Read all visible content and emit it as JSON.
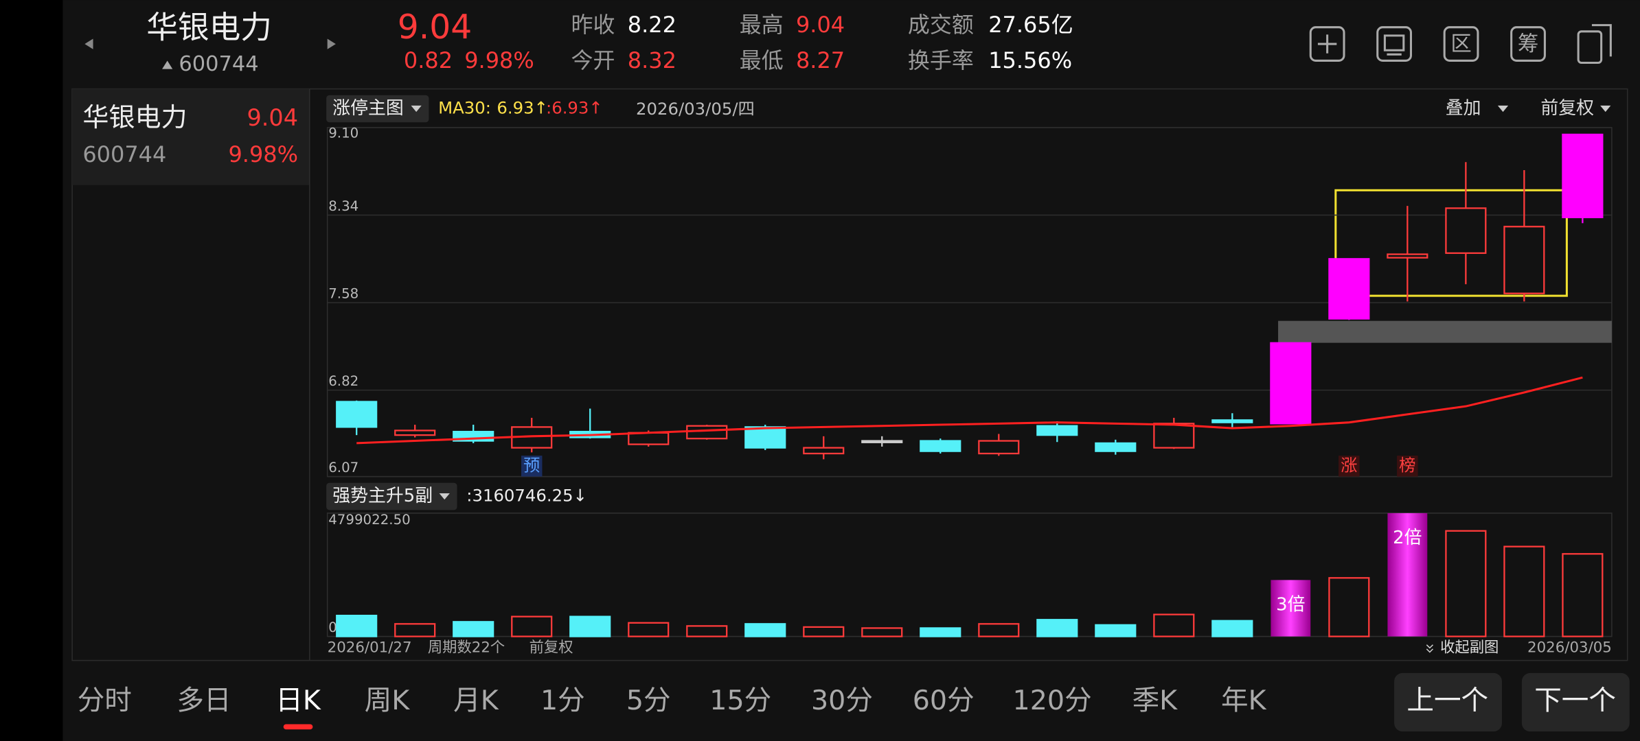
{
  "header": {
    "name": "华银电力",
    "code": "600744",
    "price": "9.04",
    "change": "0.82",
    "pct": "9.98%",
    "stats": [
      {
        "label": "昨收",
        "value": "8.22",
        "color": "#ffffff"
      },
      {
        "label": "今开",
        "value": "8.32",
        "color": "#ff3b3b"
      },
      {
        "label": "最高",
        "value": "9.04",
        "color": "#ff3b3b"
      },
      {
        "label": "最低",
        "value": "8.27",
        "color": "#ff3b3b"
      },
      {
        "label": "成交额",
        "value": "27.65亿",
        "color": "#ffffff"
      },
      {
        "label": "换手率",
        "value": "15.56%",
        "color": "#ffffff"
      }
    ],
    "icons": [
      "区",
      "筹"
    ]
  },
  "sidebar": {
    "name": "华银电力",
    "price": "9.04",
    "code": "600744",
    "pct": "9.98%"
  },
  "chart": {
    "main_label": "涨停主图",
    "ma_label": "MA30:",
    "ma_value": "6.93↑",
    "ma_value2": ":6.93↑",
    "date": "2026/03/05/四",
    "overlay": "叠加",
    "adjust": "前复权",
    "ylim": [
      6.07,
      9.1
    ],
    "yticks": [
      {
        "value": 9.1,
        "label": "9.10"
      },
      8.34,
      7.58,
      6.82,
      6.07
    ],
    "open": [
      6.72,
      6.43,
      6.46,
      6.32,
      6.46,
      6.35,
      6.4,
      6.5,
      6.27,
      6.38,
      6.38,
      6.27,
      6.51,
      6.36,
      6.32,
      6.56,
      6.53,
      7.44,
      7.97,
      8.01,
      7.66,
      8.32
    ],
    "high": [
      6.73,
      6.52,
      6.52,
      6.58,
      6.66,
      6.47,
      6.52,
      6.52,
      6.42,
      6.42,
      6.4,
      6.44,
      6.55,
      6.39,
      6.58,
      6.62,
      7.23,
      7.96,
      8.42,
      8.8,
      8.73,
      9.04
    ],
    "low": [
      6.43,
      6.41,
      6.36,
      6.28,
      6.4,
      6.33,
      6.39,
      6.3,
      6.22,
      6.33,
      6.27,
      6.25,
      6.37,
      6.26,
      6.31,
      6.49,
      6.53,
      7.43,
      7.59,
      7.74,
      7.59,
      8.27
    ],
    "close": [
      6.5,
      6.47,
      6.38,
      6.5,
      6.41,
      6.45,
      6.51,
      6.32,
      6.32,
      6.38,
      6.29,
      6.38,
      6.43,
      6.29,
      6.53,
      6.54,
      7.23,
      7.96,
      8.0,
      8.4,
      8.24,
      9.04
    ],
    "colors": [
      "#55f0f8",
      "#ff3b3b",
      "#55f0f8",
      "#ff3b3b",
      "#55f0f8",
      "#ff3b3b",
      "#ff3b3b",
      "#55f0f8",
      "#ff3b3b",
      "#cccccc",
      "#55f0f8",
      "#ff3b3b",
      "#55f0f8",
      "#55f0f8",
      "#ff3b3b",
      "#55f0f8",
      "#ff00ff",
      "#ff00ff",
      "#ff3b3b",
      "#ff3b3b",
      "#ff3b3b",
      "#ff00ff"
    ],
    "ma30": [
      6.36,
      6.38,
      6.4,
      6.42,
      6.43,
      6.45,
      6.47,
      6.49,
      6.5,
      6.51,
      6.52,
      6.53,
      6.54,
      6.53,
      6.52,
      6.49,
      6.51,
      6.54,
      6.61,
      6.68,
      6.8,
      6.93
    ],
    "ma_color": "#ff2020",
    "markers": [
      null,
      null,
      null,
      "预",
      null,
      null,
      null,
      null,
      null,
      null,
      null,
      null,
      null,
      null,
      null,
      null,
      null,
      "涨",
      "榜",
      null,
      null,
      null
    ]
  },
  "volume": {
    "label": "强势主升5副",
    "value": ":3160746.25↓",
    "ylim": [
      0,
      4799022.5
    ],
    "yticks": [
      {
        "value": 4799022.5,
        "label": "4799022.50"
      },
      {
        "value": 0,
        "label": "0.00"
      }
    ],
    "values": [
      813000,
      488000,
      569000,
      773000,
      773000,
      529000,
      407000,
      488000,
      366000,
      325000,
      325000,
      488000,
      651000,
      447000,
      854000,
      610000,
      2196000,
      2278000,
      4799022.5,
      4108000,
      3498000,
      3213000
    ],
    "labels": [
      null,
      null,
      null,
      null,
      null,
      null,
      null,
      null,
      null,
      null,
      null,
      null,
      null,
      null,
      null,
      null,
      "3倍",
      null,
      "2倍",
      null,
      null,
      null
    ]
  },
  "footer": {
    "start": "2026/01/27",
    "periods": "周期数22个",
    "adjust": "前复权",
    "collapse": "收起副图",
    "end": "2026/03/05"
  },
  "tabs": [
    "分时",
    "多日",
    "日K",
    "周K",
    "月K",
    "1分",
    "5分",
    "15分",
    "30分",
    "60分",
    "120分",
    "季K",
    "年K"
  ],
  "buttons": [
    "上一个",
    "下一个"
  ]
}
